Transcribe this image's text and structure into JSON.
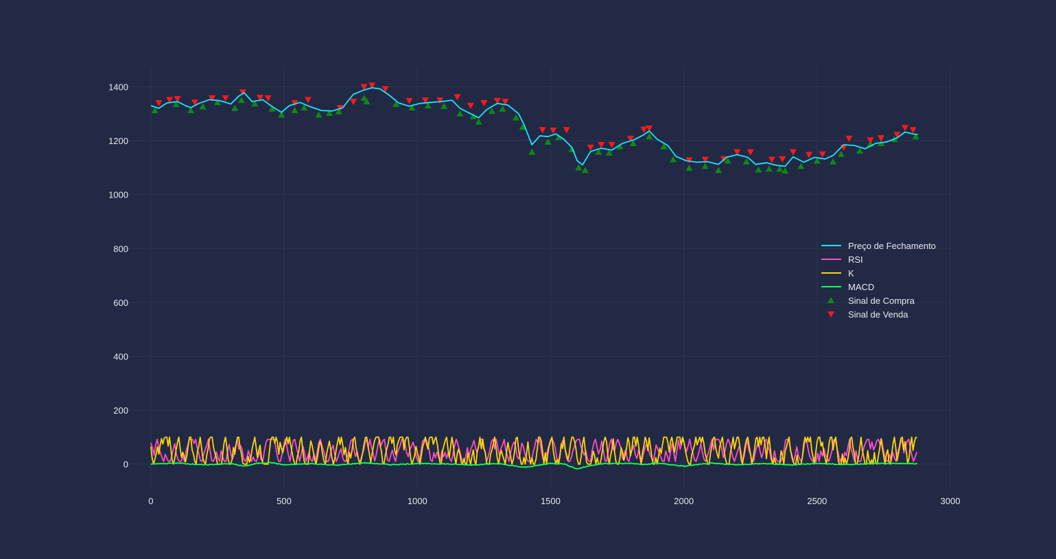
{
  "chart_data": {
    "type": "line",
    "title": "",
    "xlabel": "",
    "ylabel": "",
    "xlim": [
      -100,
      3000
    ],
    "ylim": [
      -95,
      1475
    ],
    "grid": true,
    "legend_position": "right",
    "x_ticks": [
      0,
      500,
      1000,
      1500,
      2000,
      2500,
      3000
    ],
    "y_ticks": [
      0,
      200,
      400,
      600,
      800,
      1000,
      1200,
      1400
    ],
    "x_tick_labels": [
      "0",
      "500",
      "1000",
      "1500",
      "2000",
      "2500",
      "3000"
    ],
    "y_tick_labels": [
      "0",
      "200",
      "400",
      "600",
      "800",
      "1000",
      "1200",
      "1400"
    ],
    "x_max": 2878,
    "series": [
      {
        "name": "Preço de Fechamento",
        "kind": "line",
        "color": "#17e6ff",
        "points": [
          [
            0,
            1330
          ],
          [
            30,
            1320
          ],
          [
            60,
            1340
          ],
          [
            100,
            1345
          ],
          [
            130,
            1330
          ],
          [
            150,
            1322
          ],
          [
            180,
            1338
          ],
          [
            220,
            1352
          ],
          [
            260,
            1348
          ],
          [
            300,
            1336
          ],
          [
            330,
            1365
          ],
          [
            350,
            1378
          ],
          [
            380,
            1345
          ],
          [
            420,
            1352
          ],
          [
            450,
            1330
          ],
          [
            490,
            1305
          ],
          [
            520,
            1330
          ],
          [
            560,
            1342
          ],
          [
            600,
            1325
          ],
          [
            640,
            1312
          ],
          [
            680,
            1310
          ],
          [
            720,
            1322
          ],
          [
            760,
            1372
          ],
          [
            800,
            1388
          ],
          [
            830,
            1396
          ],
          [
            860,
            1392
          ],
          [
            890,
            1372
          ],
          [
            930,
            1340
          ],
          [
            970,
            1328
          ],
          [
            1010,
            1338
          ],
          [
            1050,
            1342
          ],
          [
            1090,
            1345
          ],
          [
            1130,
            1350
          ],
          [
            1160,
            1320
          ],
          [
            1200,
            1300
          ],
          [
            1230,
            1285
          ],
          [
            1260,
            1315
          ],
          [
            1300,
            1338
          ],
          [
            1340,
            1332
          ],
          [
            1380,
            1300
          ],
          [
            1400,
            1260
          ],
          [
            1430,
            1185
          ],
          [
            1460,
            1218
          ],
          [
            1490,
            1215
          ],
          [
            1520,
            1225
          ],
          [
            1550,
            1205
          ],
          [
            1580,
            1175
          ],
          [
            1600,
            1125
          ],
          [
            1620,
            1110
          ],
          [
            1650,
            1160
          ],
          [
            1690,
            1172
          ],
          [
            1730,
            1165
          ],
          [
            1770,
            1190
          ],
          [
            1810,
            1202
          ],
          [
            1850,
            1222
          ],
          [
            1870,
            1236
          ],
          [
            1900,
            1205
          ],
          [
            1940,
            1182
          ],
          [
            1970,
            1142
          ],
          [
            2010,
            1125
          ],
          [
            2050,
            1120
          ],
          [
            2090,
            1122
          ],
          [
            2130,
            1112
          ],
          [
            2160,
            1138
          ],
          [
            2200,
            1148
          ],
          [
            2240,
            1138
          ],
          [
            2270,
            1112
          ],
          [
            2310,
            1118
          ],
          [
            2350,
            1108
          ],
          [
            2380,
            1105
          ],
          [
            2410,
            1140
          ],
          [
            2450,
            1120
          ],
          [
            2490,
            1138
          ],
          [
            2530,
            1132
          ],
          [
            2560,
            1145
          ],
          [
            2600,
            1185
          ],
          [
            2640,
            1182
          ],
          [
            2680,
            1170
          ],
          [
            2720,
            1190
          ],
          [
            2760,
            1195
          ],
          [
            2800,
            1210
          ],
          [
            2830,
            1232
          ],
          [
            2860,
            1225
          ],
          [
            2878,
            1222
          ]
        ]
      },
      {
        "name": "RSI",
        "kind": "line",
        "color": "#ff4fc4",
        "amplitude": [
          10,
          92
        ],
        "points": []
      },
      {
        "name": "K",
        "kind": "line",
        "color": "#ffd60a",
        "amplitude": [
          0,
          100
        ],
        "points": []
      },
      {
        "name": "MACD",
        "kind": "line",
        "color": "#13ff4f",
        "amplitude": [
          -20,
          15
        ],
        "points": [
          [
            0,
            0
          ],
          [
            100,
            4
          ],
          [
            200,
            -3
          ],
          [
            300,
            2
          ],
          [
            350,
            -8
          ],
          [
            400,
            3
          ],
          [
            450,
            6
          ],
          [
            500,
            -3
          ],
          [
            600,
            2
          ],
          [
            700,
            -4
          ],
          [
            800,
            5
          ],
          [
            900,
            -2
          ],
          [
            1000,
            2
          ],
          [
            1100,
            1
          ],
          [
            1200,
            -3
          ],
          [
            1300,
            2
          ],
          [
            1400,
            -12
          ],
          [
            1450,
            -5
          ],
          [
            1500,
            3
          ],
          [
            1550,
            1
          ],
          [
            1600,
            -18
          ],
          [
            1650,
            -5
          ],
          [
            1700,
            2
          ],
          [
            1800,
            3
          ],
          [
            1850,
            -2
          ],
          [
            1900,
            4
          ],
          [
            2000,
            -8
          ],
          [
            2050,
            -2
          ],
          [
            2100,
            3
          ],
          [
            2200,
            -2
          ],
          [
            2300,
            2
          ],
          [
            2400,
            -3
          ],
          [
            2500,
            3
          ],
          [
            2600,
            -2
          ],
          [
            2700,
            2
          ],
          [
            2800,
            3
          ],
          [
            2878,
            1
          ]
        ]
      },
      {
        "name": "Sinal de Compra",
        "kind": "marker",
        "marker": "triangle-up",
        "color": "#0d8a14",
        "points": [
          [
            15,
            1312
          ],
          [
            95,
            1335
          ],
          [
            150,
            1312
          ],
          [
            195,
            1326
          ],
          [
            250,
            1342
          ],
          [
            315,
            1320
          ],
          [
            340,
            1350
          ],
          [
            390,
            1337
          ],
          [
            455,
            1318
          ],
          [
            490,
            1296
          ],
          [
            540,
            1312
          ],
          [
            575,
            1322
          ],
          [
            630,
            1296
          ],
          [
            670,
            1302
          ],
          [
            705,
            1308
          ],
          [
            800,
            1358
          ],
          [
            810,
            1345
          ],
          [
            920,
            1335
          ],
          [
            980,
            1322
          ],
          [
            1040,
            1330
          ],
          [
            1100,
            1328
          ],
          [
            1160,
            1300
          ],
          [
            1210,
            1290
          ],
          [
            1230,
            1270
          ],
          [
            1280,
            1310
          ],
          [
            1320,
            1318
          ],
          [
            1370,
            1285
          ],
          [
            1395,
            1250
          ],
          [
            1430,
            1158
          ],
          [
            1490,
            1195
          ],
          [
            1530,
            1212
          ],
          [
            1580,
            1168
          ],
          [
            1605,
            1100
          ],
          [
            1630,
            1090
          ],
          [
            1680,
            1158
          ],
          [
            1720,
            1155
          ],
          [
            1760,
            1178
          ],
          [
            1810,
            1190
          ],
          [
            1870,
            1215
          ],
          [
            1925,
            1178
          ],
          [
            1960,
            1130
          ],
          [
            2020,
            1098
          ],
          [
            2080,
            1105
          ],
          [
            2130,
            1090
          ],
          [
            2165,
            1125
          ],
          [
            2235,
            1122
          ],
          [
            2280,
            1092
          ],
          [
            2320,
            1095
          ],
          [
            2360,
            1095
          ],
          [
            2380,
            1088
          ],
          [
            2440,
            1105
          ],
          [
            2500,
            1125
          ],
          [
            2560,
            1122
          ],
          [
            2590,
            1150
          ],
          [
            2660,
            1162
          ],
          [
            2700,
            1188
          ],
          [
            2740,
            1190
          ],
          [
            2790,
            1205
          ],
          [
            2870,
            1215
          ]
        ]
      },
      {
        "name": "Sinal de Venda",
        "kind": "marker",
        "marker": "triangle-down",
        "color": "#ff1a1a",
        "points": [
          [
            30,
            1340
          ],
          [
            70,
            1352
          ],
          [
            100,
            1355
          ],
          [
            165,
            1342
          ],
          [
            230,
            1358
          ],
          [
            280,
            1358
          ],
          [
            345,
            1380
          ],
          [
            410,
            1360
          ],
          [
            440,
            1358
          ],
          [
            540,
            1340
          ],
          [
            590,
            1352
          ],
          [
            710,
            1322
          ],
          [
            760,
            1345
          ],
          [
            800,
            1400
          ],
          [
            830,
            1405
          ],
          [
            880,
            1392
          ],
          [
            970,
            1348
          ],
          [
            1030,
            1350
          ],
          [
            1085,
            1350
          ],
          [
            1150,
            1362
          ],
          [
            1200,
            1330
          ],
          [
            1250,
            1340
          ],
          [
            1300,
            1348
          ],
          [
            1330,
            1345
          ],
          [
            1470,
            1240
          ],
          [
            1510,
            1238
          ],
          [
            1560,
            1240
          ],
          [
            1650,
            1175
          ],
          [
            1690,
            1185
          ],
          [
            1730,
            1185
          ],
          [
            1800,
            1208
          ],
          [
            1850,
            1242
          ],
          [
            1870,
            1246
          ],
          [
            2020,
            1128
          ],
          [
            2080,
            1130
          ],
          [
            2150,
            1132
          ],
          [
            2200,
            1158
          ],
          [
            2250,
            1158
          ],
          [
            2330,
            1130
          ],
          [
            2370,
            1132
          ],
          [
            2410,
            1158
          ],
          [
            2470,
            1148
          ],
          [
            2520,
            1150
          ],
          [
            2600,
            1175
          ],
          [
            2620,
            1208
          ],
          [
            2700,
            1202
          ],
          [
            2740,
            1210
          ],
          [
            2800,
            1222
          ],
          [
            2830,
            1248
          ],
          [
            2860,
            1240
          ]
        ]
      }
    ]
  }
}
